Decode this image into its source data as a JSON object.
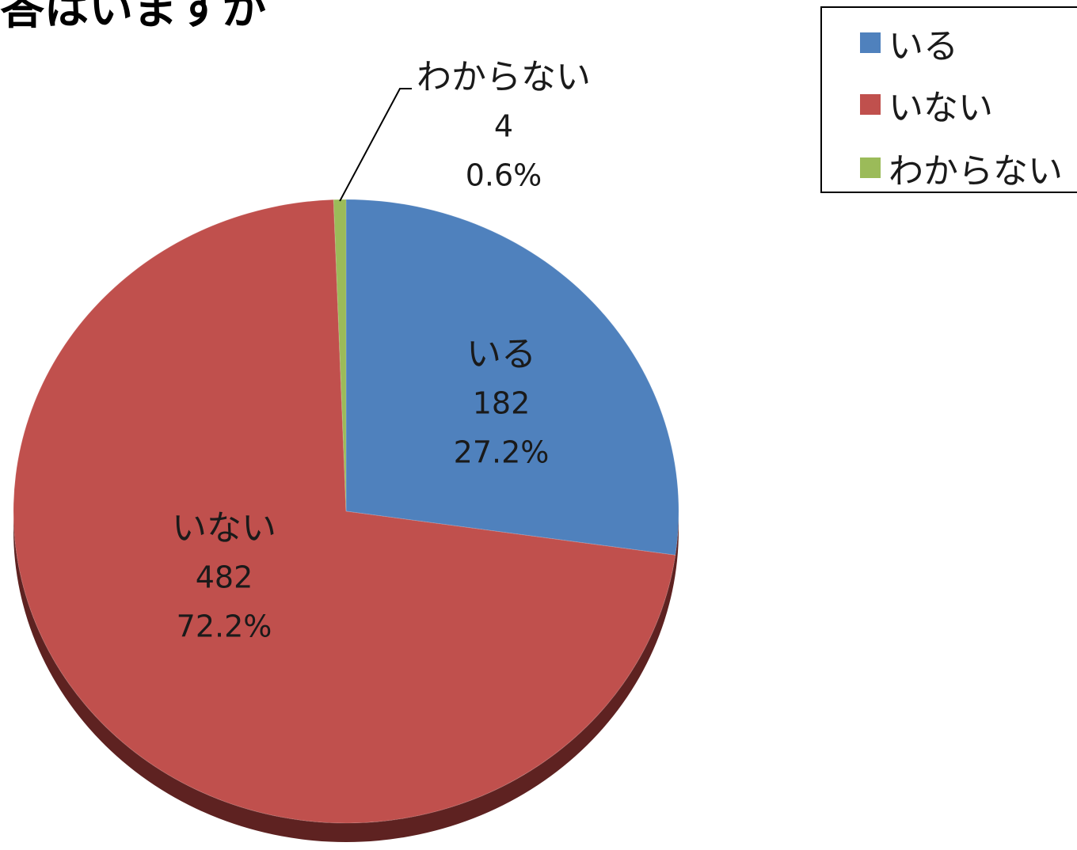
{
  "chart_data": {
    "type": "pie",
    "title": "答はいますか",
    "categories": [
      "いる",
      "いない",
      "わからない"
    ],
    "values": [
      182,
      482,
      4
    ],
    "percentages": [
      "27.2%",
      "72.2%",
      "0.6%"
    ],
    "colors": [
      "#4f81bd",
      "#c0504d",
      "#9bbb59"
    ],
    "legend_position": "top-right",
    "start_angle_degrees": 0,
    "style": "3d"
  }
}
